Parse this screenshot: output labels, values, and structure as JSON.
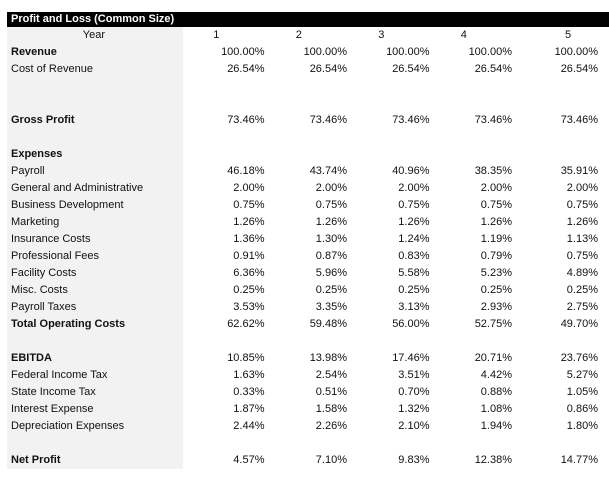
{
  "title": "Profit and Loss (Common Size)",
  "header": {
    "label": "Year",
    "years": [
      "1",
      "2",
      "3",
      "4",
      "5"
    ]
  },
  "rows": [
    {
      "label": "Revenue",
      "bold": true,
      "values": [
        "100.00%",
        "100.00%",
        "100.00%",
        "100.00%",
        "100.00%"
      ]
    },
    {
      "label": "Cost of Revenue",
      "values": [
        "26.54%",
        "26.54%",
        "26.54%",
        "26.54%",
        "26.54%"
      ]
    },
    {
      "label": "",
      "values": []
    },
    {
      "label": "",
      "values": []
    },
    {
      "label": "Gross Profit",
      "bold": true,
      "values": [
        "73.46%",
        "73.46%",
        "73.46%",
        "73.46%",
        "73.46%"
      ]
    },
    {
      "label": "",
      "values": []
    },
    {
      "label": "Expenses",
      "bold": true,
      "values": []
    },
    {
      "label": "Payroll",
      "values": [
        "46.18%",
        "43.74%",
        "40.96%",
        "38.35%",
        "35.91%"
      ]
    },
    {
      "label": "General and Administrative",
      "values": [
        "2.00%",
        "2.00%",
        "2.00%",
        "2.00%",
        "2.00%"
      ]
    },
    {
      "label": "Business Development",
      "values": [
        "0.75%",
        "0.75%",
        "0.75%",
        "0.75%",
        "0.75%"
      ]
    },
    {
      "label": "Marketing",
      "values": [
        "1.26%",
        "1.26%",
        "1.26%",
        "1.26%",
        "1.26%"
      ]
    },
    {
      "label": "Insurance Costs",
      "values": [
        "1.36%",
        "1.30%",
        "1.24%",
        "1.19%",
        "1.13%"
      ]
    },
    {
      "label": "Professional Fees",
      "values": [
        "0.91%",
        "0.87%",
        "0.83%",
        "0.79%",
        "0.75%"
      ]
    },
    {
      "label": "Facility Costs",
      "values": [
        "6.36%",
        "5.96%",
        "5.58%",
        "5.23%",
        "4.89%"
      ]
    },
    {
      "label": "Misc. Costs",
      "values": [
        "0.25%",
        "0.25%",
        "0.25%",
        "0.25%",
        "0.25%"
      ]
    },
    {
      "label": "Payroll Taxes",
      "values": [
        "3.53%",
        "3.35%",
        "3.13%",
        "2.93%",
        "2.75%"
      ]
    },
    {
      "label": "Total Operating Costs",
      "bold": true,
      "values": [
        "62.62%",
        "59.48%",
        "56.00%",
        "52.75%",
        "49.70%"
      ]
    },
    {
      "label": "",
      "values": []
    },
    {
      "label": "EBITDA",
      "bold": true,
      "values": [
        "10.85%",
        "13.98%",
        "17.46%",
        "20.71%",
        "23.76%"
      ]
    },
    {
      "label": "Federal Income Tax",
      "values": [
        "1.63%",
        "2.54%",
        "3.51%",
        "4.42%",
        "5.27%"
      ]
    },
    {
      "label": "State Income Tax",
      "values": [
        "0.33%",
        "0.51%",
        "0.70%",
        "0.88%",
        "1.05%"
      ]
    },
    {
      "label": "Interest Expense",
      "values": [
        "1.87%",
        "1.58%",
        "1.32%",
        "1.08%",
        "0.86%"
      ]
    },
    {
      "label": "Depreciation Expenses",
      "values": [
        "2.44%",
        "2.26%",
        "2.10%",
        "1.94%",
        "1.80%"
      ]
    },
    {
      "label": "",
      "values": []
    },
    {
      "label": "Net Profit",
      "bold": true,
      "values": [
        "4.57%",
        "7.10%",
        "9.83%",
        "12.38%",
        "14.77%"
      ]
    }
  ]
}
